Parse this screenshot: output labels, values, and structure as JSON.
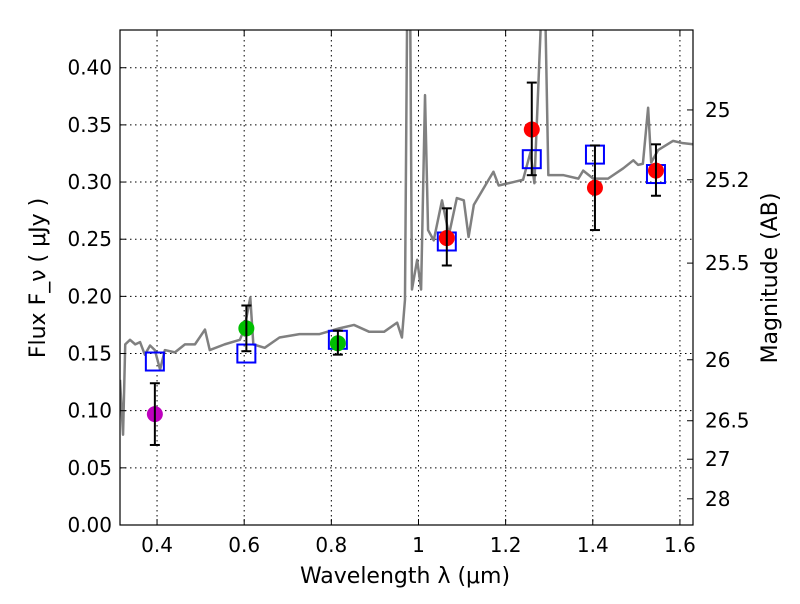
{
  "chart_data": {
    "type": "scatter",
    "title": "",
    "xlabel": "Wavelength  λ (μm)",
    "ylabel": "Flux  F_ν  ( μJy )",
    "ylabel_right": "Magnitude (AB)",
    "xlim": [
      0.315,
      1.63
    ],
    "ylim": [
      0.0,
      0.433
    ],
    "grid": true,
    "x_ticks": [
      0.4,
      0.6,
      0.8,
      1.0,
      1.2,
      1.4,
      1.6
    ],
    "x_tick_labels": [
      "0.4",
      "0.6",
      "0.8",
      "1",
      "1.2",
      "1.4",
      "1.6"
    ],
    "y_ticks": [
      0.0,
      0.05,
      0.1,
      0.15,
      0.2,
      0.25,
      0.3,
      0.35,
      0.4
    ],
    "y_tick_labels": [
      "0.00",
      "0.05",
      "0.10",
      "0.15",
      "0.20",
      "0.25",
      "0.30",
      "0.35",
      "0.40"
    ],
    "mag_ticks": [
      25,
      25.2,
      25.5,
      26,
      26.5,
      27,
      28
    ],
    "mag_tick_labels": [
      "25",
      "25.2",
      "25.5",
      "26",
      "26.5",
      "27",
      "28"
    ],
    "colors": {
      "spectrum": "#808080",
      "model": "#0000ff",
      "purple": "#bf00bf",
      "green": "#00bf00",
      "red": "#ff0000",
      "err": "#000000"
    },
    "series": [
      {
        "name": "spectrum",
        "kind": "line",
        "points": [
          [
            0.315,
            0.127
          ],
          [
            0.322,
            0.079
          ],
          [
            0.327,
            0.158
          ],
          [
            0.338,
            0.162
          ],
          [
            0.35,
            0.158
          ],
          [
            0.361,
            0.16
          ],
          [
            0.372,
            0.149
          ],
          [
            0.384,
            0.157
          ],
          [
            0.395,
            0.153
          ],
          [
            0.407,
            0.136
          ],
          [
            0.418,
            0.153
          ],
          [
            0.441,
            0.151
          ],
          [
            0.464,
            0.158
          ],
          [
            0.487,
            0.158
          ],
          [
            0.51,
            0.171
          ],
          [
            0.521,
            0.153
          ],
          [
            0.555,
            0.158
          ],
          [
            0.59,
            0.162
          ],
          [
            0.6,
            0.171
          ],
          [
            0.614,
            0.199
          ],
          [
            0.621,
            0.158
          ],
          [
            0.647,
            0.155
          ],
          [
            0.681,
            0.164
          ],
          [
            0.727,
            0.167
          ],
          [
            0.773,
            0.167
          ],
          [
            0.818,
            0.172
          ],
          [
            0.852,
            0.175
          ],
          [
            0.887,
            0.169
          ],
          [
            0.921,
            0.169
          ],
          [
            0.951,
            0.177
          ],
          [
            0.962,
            0.164
          ],
          [
            0.969,
            0.197
          ],
          [
            0.974,
            0.45
          ],
          [
            0.981,
            0.45
          ],
          [
            0.985,
            0.206
          ],
          [
            0.997,
            0.232
          ],
          [
            1.006,
            0.206
          ],
          [
            1.015,
            0.376
          ],
          [
            1.022,
            0.258
          ],
          [
            1.035,
            0.249
          ],
          [
            1.054,
            0.284
          ],
          [
            1.07,
            0.254
          ],
          [
            1.088,
            0.286
          ],
          [
            1.104,
            0.284
          ],
          [
            1.115,
            0.252
          ],
          [
            1.127,
            0.28
          ],
          [
            1.161,
            0.302
          ],
          [
            1.172,
            0.309
          ],
          [
            1.184,
            0.297
          ],
          [
            1.218,
            0.3
          ],
          [
            1.24,
            0.302
          ],
          [
            1.257,
            0.326
          ],
          [
            1.266,
            0.299
          ],
          [
            1.282,
            0.45
          ],
          [
            1.291,
            0.45
          ],
          [
            1.298,
            0.306
          ],
          [
            1.333,
            0.306
          ],
          [
            1.367,
            0.303
          ],
          [
            1.378,
            0.31
          ],
          [
            1.401,
            0.303
          ],
          [
            1.435,
            0.303
          ],
          [
            1.47,
            0.312
          ],
          [
            1.493,
            0.319
          ],
          [
            1.504,
            0.315
          ],
          [
            1.515,
            0.316
          ],
          [
            1.527,
            0.365
          ],
          [
            1.534,
            0.317
          ],
          [
            1.55,
            0.328
          ],
          [
            1.584,
            0.336
          ],
          [
            1.607,
            0.334
          ],
          [
            1.63,
            0.333
          ]
        ]
      },
      {
        "name": "model",
        "kind": "square",
        "points": [
          [
            0.395,
            0.143
          ],
          [
            0.605,
            0.15
          ],
          [
            0.815,
            0.162
          ],
          [
            1.065,
            0.248
          ],
          [
            1.26,
            0.32
          ],
          [
            1.405,
            0.324
          ],
          [
            1.545,
            0.307
          ]
        ]
      },
      {
        "name": "purple",
        "kind": "circle",
        "points": [
          [
            0.395,
            0.097,
            0.07,
            0.124
          ]
        ]
      },
      {
        "name": "green",
        "kind": "circle",
        "points": [
          [
            0.605,
            0.172,
            0.152,
            0.192
          ],
          [
            0.815,
            0.159,
            0.149,
            0.17
          ]
        ]
      },
      {
        "name": "red",
        "kind": "circle",
        "points": [
          [
            1.065,
            0.251,
            0.227,
            0.277
          ],
          [
            1.26,
            0.346,
            0.306,
            0.387
          ],
          [
            1.405,
            0.295,
            0.258,
            0.332
          ],
          [
            1.545,
            0.31,
            0.288,
            0.333
          ]
        ]
      }
    ]
  }
}
